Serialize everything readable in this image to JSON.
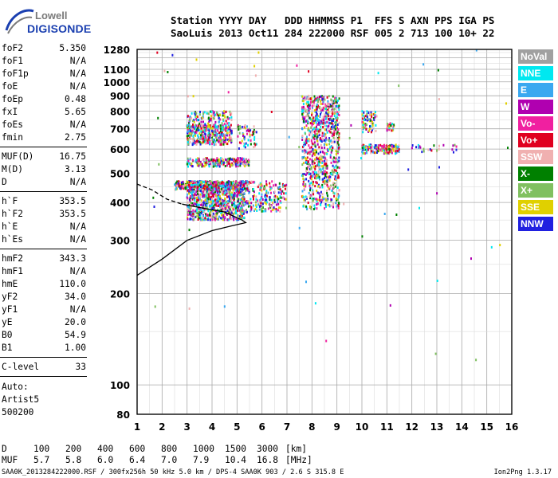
{
  "logo": {
    "top": "Lowell",
    "bottom": "DIGISONDE"
  },
  "header": {
    "labels_line": "Station YYYY DAY   DDD HHMMSS P1  FFS S AXN PPS IGA PS",
    "values_line": "SaoLuis 2013 Oct11 284 222000 RSF 005 2 713 100 10+ 22"
  },
  "params": [
    {
      "name": "foF2",
      "value": "5.350"
    },
    {
      "name": "foF1",
      "value": "N/A"
    },
    {
      "name": "foF1p",
      "value": "N/A"
    },
    {
      "name": "foE",
      "value": "N/A"
    },
    {
      "name": "foEp",
      "value": "0.48"
    },
    {
      "name": "fxI",
      "value": "5.65"
    },
    {
      "name": "foEs",
      "value": "N/A"
    },
    {
      "name": "fmin",
      "value": "2.75"
    },
    {
      "name": "MUF(D)",
      "value": "16.75"
    },
    {
      "name": "M(D)",
      "value": "3.13"
    },
    {
      "name": "D",
      "value": "N/A"
    },
    {
      "name": "h`F",
      "value": "353.5"
    },
    {
      "name": "h`F2",
      "value": "353.5"
    },
    {
      "name": "h`E",
      "value": "N/A"
    },
    {
      "name": "h`Es",
      "value": "N/A"
    },
    {
      "name": "hmF2",
      "value": "343.3"
    },
    {
      "name": "hmF1",
      "value": "N/A"
    },
    {
      "name": "hmE",
      "value": "110.0"
    },
    {
      "name": "yF2",
      "value": "34.0"
    },
    {
      "name": "yF1",
      "value": "N/A"
    },
    {
      "name": "yE",
      "value": "20.0"
    },
    {
      "name": "B0",
      "value": "54.9"
    },
    {
      "name": "B1",
      "value": "1.00"
    },
    {
      "name": "C-level",
      "value": "33"
    }
  ],
  "auto": {
    "line1": "Auto:",
    "line2": "Artist5",
    "line3": "500200"
  },
  "legend": [
    {
      "label": "NoVal",
      "color": "#a0a0a0"
    },
    {
      "label": "NNE",
      "color": "#00e8f0"
    },
    {
      "label": "E",
      "color": "#3aa8f0"
    },
    {
      "label": "W",
      "color": "#b000b0"
    },
    {
      "label": "Vo-",
      "color": "#f020a0"
    },
    {
      "label": "Vo+",
      "color": "#e00020"
    },
    {
      "label": "SSW",
      "color": "#f0b0b0"
    },
    {
      "label": "X-",
      "color": "#008000"
    },
    {
      "label": "X+",
      "color": "#80c060"
    },
    {
      "label": "SSE",
      "color": "#e0d000"
    },
    {
      "label": "NNW",
      "color": "#2020e0"
    }
  ],
  "muf_table": {
    "d_label": "D",
    "d_values": [
      "100",
      "200",
      "400",
      "600",
      "800",
      "1000",
      "1500",
      "3000"
    ],
    "d_unit": "[km]",
    "muf_label": "MUF",
    "muf_values": [
      "5.7",
      "5.8",
      "6.0",
      "6.4",
      "7.0",
      "7.9",
      "10.4",
      "16.8"
    ],
    "muf_unit": "[MHz]"
  },
  "footer": {
    "text": "SAA0K_2013284222000.RSF / 300fx256h 50 kHz 5.0 km / DPS-4 SAA0K 903 / 2.6 S 315.8 E",
    "version": "Ion2Png 1.3.17"
  },
  "chart_data": {
    "type": "scatter",
    "x_ticks": [
      1,
      2,
      3,
      4,
      5,
      6,
      7,
      8,
      9,
      10,
      11,
      12,
      13,
      14,
      15,
      16
    ],
    "xlim": [
      1,
      16
    ],
    "y_scale": "log",
    "y_ticks": [
      80,
      100,
      200,
      300,
      400,
      500,
      600,
      700,
      800,
      900,
      1000,
      1100,
      1280
    ],
    "ylim": [
      80,
      1280
    ],
    "grid": true,
    "legend_position": "right",
    "clusters": [
      {
        "x": [
          3.0,
          5.3
        ],
        "y": [
          350,
          470
        ],
        "n": 900
      },
      {
        "x": [
          2.5,
          5.5
        ],
        "y": [
          440,
          470
        ],
        "n": 300
      },
      {
        "x": [
          3.0,
          5.5
        ],
        "y": [
          525,
          560
        ],
        "n": 220
      },
      {
        "x": [
          3.0,
          4.8
        ],
        "y": [
          620,
          720
        ],
        "n": 350
      },
      {
        "x": [
          3.0,
          4.8
        ],
        "y": [
          700,
          800
        ],
        "n": 140
      },
      {
        "x": [
          5.0,
          5.8
        ],
        "y": [
          600,
          720
        ],
        "n": 60
      },
      {
        "x": [
          5.0,
          7.0
        ],
        "y": [
          370,
          470
        ],
        "n": 220
      },
      {
        "x": [
          7.6,
          9.1
        ],
        "y": [
          380,
          900
        ],
        "n": 900
      },
      {
        "x": [
          10.0,
          11.5
        ],
        "y": [
          580,
          620
        ],
        "n": 150
      },
      {
        "x": [
          10.0,
          10.6
        ],
        "y": [
          680,
          800
        ],
        "n": 70
      },
      {
        "x": [
          11.0,
          11.3
        ],
        "y": [
          690,
          730
        ],
        "n": 25
      },
      {
        "x": [
          12.0,
          14.0
        ],
        "y": [
          580,
          620
        ],
        "n": 25
      },
      {
        "x": [
          1.5,
          16.0
        ],
        "y": [
          90,
          1280
        ],
        "n": 60
      }
    ],
    "profile_solid": [
      [
        1.0,
        230
      ],
      [
        2.0,
        260
      ],
      [
        3.0,
        300
      ],
      [
        4.0,
        323
      ],
      [
        4.8,
        335
      ],
      [
        5.35,
        343
      ],
      [
        5.2,
        350
      ],
      [
        4.5,
        372
      ],
      [
        3.5,
        385
      ],
      [
        2.8,
        395
      ]
    ],
    "profile_dashed": [
      [
        1.0,
        460
      ],
      [
        1.6,
        440
      ],
      [
        2.2,
        410
      ],
      [
        2.8,
        395
      ]
    ]
  }
}
